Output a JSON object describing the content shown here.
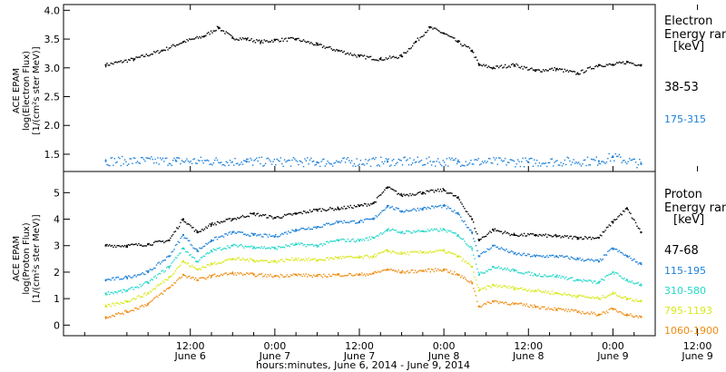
{
  "colors": {
    "black": "#000000",
    "blue": "#1b7fd8",
    "cyan": "#22d8c8",
    "yellow": "#d8e81a",
    "orange": "#f08c10"
  },
  "x_axis": {
    "title": "hours:minutes, June  6, 2014 - June  9, 2014",
    "range_hours": [
      -6,
      78
    ],
    "ticks": [
      {
        "h": 12,
        "time": "12:00",
        "day": "June 6"
      },
      {
        "h": 24,
        "time": "0:00",
        "day": "June 7"
      },
      {
        "h": 36,
        "time": "12:00",
        "day": "June 7"
      },
      {
        "h": 48,
        "time": "0:00",
        "day": "June 8"
      },
      {
        "h": 60,
        "time": "12:00",
        "day": "June 8"
      },
      {
        "h": 72,
        "time": "0:00",
        "day": "June 9"
      },
      {
        "h": 84,
        "time": "12:00",
        "day": "June 9"
      }
    ]
  },
  "electron_panel": {
    "ylabel_lines": [
      "ACE EPAM",
      "log(Electron Flux)",
      "[1/(cm²s ster MeV)]"
    ],
    "legend_title": [
      "Electron",
      "Energy ran"
    ],
    "legend_unit": "[keV]",
    "ylim": [
      1.2,
      4.1
    ],
    "yticks": [
      "1.5",
      "2.0",
      "2.5",
      "3.0",
      "3.5",
      "4.0"
    ]
  },
  "proton_panel": {
    "ylabel_lines": [
      "ACE EPAM",
      "log(Proton Flux)",
      "[1/(cm²s ster MeV)]"
    ],
    "legend_title": [
      "Proton",
      "Energy ran"
    ],
    "legend_unit": "[keV]",
    "ylim": [
      -0.4,
      5.8
    ],
    "yticks": [
      "0",
      "1",
      "2",
      "3",
      "4",
      "5"
    ]
  },
  "chart_data": {
    "type": "scatter",
    "panels": [
      {
        "name": "Electron",
        "series": [
          {
            "name": "38-53",
            "color": "#000000",
            "x": [
              0,
              4,
              8,
              11,
              14,
              16,
              18,
              20,
              22,
              24,
              27,
              30,
              33,
              36,
              39,
              42,
              44,
              46,
              48,
              50,
              52,
              53,
              55,
              58,
              61,
              64,
              67,
              70,
              72,
              74,
              76
            ],
            "y": [
              3.05,
              3.15,
              3.3,
              3.45,
              3.55,
              3.7,
              3.52,
              3.5,
              3.45,
              3.48,
              3.5,
              3.4,
              3.3,
              3.2,
              3.15,
              3.2,
              3.45,
              3.7,
              3.6,
              3.45,
              3.3,
              3.05,
              3.0,
              3.05,
              2.95,
              2.98,
              2.9,
              3.05,
              3.05,
              3.1,
              3.05
            ]
          },
          {
            "name": "175-315",
            "color": "#1b7fd8",
            "x": [
              0,
              10,
              20,
              30,
              40,
              50,
              60,
              70,
              72,
              76
            ],
            "y": [
              1.38,
              1.38,
              1.37,
              1.36,
              1.37,
              1.37,
              1.36,
              1.38,
              1.45,
              1.33
            ]
          }
        ]
      },
      {
        "name": "Proton",
        "series": [
          {
            "name": "47-68",
            "color": "#000000",
            "x": [
              0,
              3,
              6,
              9,
              11,
              13,
              15,
              18,
              21,
              24,
              27,
              30,
              33,
              36,
              38,
              40,
              42,
              45,
              48,
              50,
              52,
              53,
              55,
              58,
              61,
              64,
              67,
              70,
              72,
              74,
              76
            ],
            "y": [
              3.0,
              3.0,
              3.05,
              3.2,
              4.0,
              3.5,
              3.8,
              4.0,
              4.2,
              4.05,
              4.2,
              4.35,
              4.4,
              4.5,
              4.6,
              5.2,
              4.9,
              5.0,
              5.1,
              4.8,
              4.0,
              3.2,
              3.6,
              3.4,
              3.4,
              3.35,
              3.3,
              3.3,
              3.9,
              4.4,
              3.5
            ]
          },
          {
            "name": "115-195",
            "color": "#1b7fd8",
            "x": [
              0,
              3,
              6,
              9,
              11,
              13,
              15,
              18,
              21,
              24,
              27,
              30,
              33,
              36,
              38,
              40,
              42,
              45,
              48,
              50,
              52,
              53,
              55,
              58,
              61,
              64,
              67,
              70,
              72,
              74,
              76
            ],
            "y": [
              1.7,
              1.8,
              2.0,
              2.6,
              3.4,
              2.8,
              3.2,
              3.5,
              3.4,
              3.35,
              3.6,
              3.7,
              3.9,
              3.9,
              4.0,
              4.5,
              4.3,
              4.4,
              4.5,
              4.2,
              3.5,
              2.6,
              3.0,
              2.7,
              2.6,
              2.6,
              2.5,
              2.4,
              2.9,
              2.6,
              2.3
            ]
          },
          {
            "name": "310-580",
            "color": "#22d8c8",
            "x": [
              0,
              3,
              6,
              9,
              11,
              13,
              15,
              18,
              21,
              24,
              27,
              30,
              33,
              36,
              38,
              40,
              42,
              45,
              48,
              50,
              52,
              53,
              55,
              58,
              61,
              64,
              67,
              70,
              72,
              74,
              76
            ],
            "y": [
              1.2,
              1.3,
              1.6,
              2.2,
              2.9,
              2.4,
              2.8,
              3.0,
              2.95,
              2.9,
              3.05,
              3.0,
              3.2,
              3.2,
              3.3,
              3.6,
              3.5,
              3.55,
              3.6,
              3.4,
              2.9,
              1.9,
              2.2,
              2.05,
              1.9,
              1.85,
              1.7,
              1.6,
              2.0,
              1.7,
              1.5
            ]
          },
          {
            "name": "795-1193",
            "color": "#d8e81a",
            "x": [
              0,
              3,
              6,
              9,
              11,
              13,
              15,
              18,
              21,
              24,
              27,
              30,
              33,
              36,
              38,
              40,
              42,
              45,
              48,
              50,
              52,
              53,
              55,
              58,
              61,
              64,
              67,
              70,
              72,
              74,
              76
            ],
            "y": [
              0.7,
              0.9,
              1.2,
              1.8,
              2.4,
              2.1,
              2.3,
              2.5,
              2.45,
              2.4,
              2.5,
              2.45,
              2.55,
              2.55,
              2.6,
              2.8,
              2.7,
              2.75,
              2.8,
              2.6,
              2.2,
              1.3,
              1.5,
              1.4,
              1.3,
              1.2,
              1.1,
              1.0,
              1.2,
              1.0,
              0.9
            ]
          },
          {
            "name": "1060-1900",
            "color": "#f08c10",
            "x": [
              0,
              3,
              6,
              9,
              11,
              13,
              15,
              18,
              21,
              24,
              27,
              30,
              33,
              36,
              38,
              40,
              42,
              45,
              48,
              50,
              52,
              53,
              55,
              58,
              61,
              64,
              67,
              70,
              72,
              74,
              76
            ],
            "y": [
              0.3,
              0.5,
              0.8,
              1.4,
              1.9,
              1.7,
              1.85,
              1.95,
              1.9,
              1.85,
              1.9,
              1.85,
              1.9,
              1.9,
              1.95,
              2.1,
              2.0,
              2.05,
              2.1,
              1.9,
              1.6,
              0.7,
              0.9,
              0.8,
              0.7,
              0.6,
              0.5,
              0.4,
              0.6,
              0.4,
              0.3
            ]
          }
        ]
      }
    ]
  }
}
